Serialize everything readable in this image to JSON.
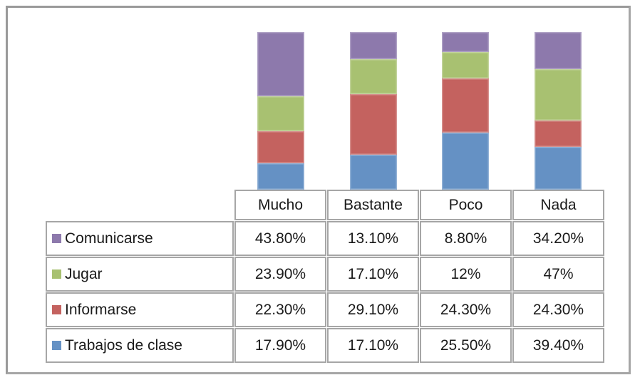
{
  "chart_data": {
    "type": "bar",
    "subtype": "100%-stacked-column",
    "title": "",
    "xlabel": "",
    "ylabel": "",
    "axes_visible": false,
    "gridlines": false,
    "legend_position": "in-data-table-rows",
    "data_table_shown": true,
    "table_border_color": "#a6a6a6",
    "frame_border_color": "#a6a6a6",
    "categories": [
      "Mucho",
      "Bastante",
      "Poco",
      "Nada"
    ],
    "series": [
      {
        "name": "Comunicarse",
        "color": "#8d79ac",
        "values": [
          43.8,
          13.1,
          8.8,
          34.2
        ],
        "display": [
          "43.80%",
          "13.10%",
          "8.80%",
          "34.20%"
        ]
      },
      {
        "name": "Jugar",
        "color": "#a8c171",
        "values": [
          23.9,
          17.1,
          12,
          47
        ],
        "display": [
          "23.90%",
          "17.10%",
          "12%",
          "47%"
        ]
      },
      {
        "name": "Informarse",
        "color": "#c4625f",
        "values": [
          22.3,
          29.1,
          24.3,
          24.3
        ],
        "display": [
          "22.30%",
          "29.10%",
          "24.30%",
          "24.30%"
        ]
      },
      {
        "name": "Trabajos de clase",
        "color": "#6591c4",
        "values": [
          17.9,
          17.1,
          25.5,
          39.4
        ],
        "display": [
          "17.90%",
          "17.10%",
          "25.50%",
          "39.40%"
        ]
      }
    ],
    "stack_order_bottom_to_top": [
      "Trabajos de clase",
      "Informarse",
      "Jugar",
      "Comunicarse"
    ]
  }
}
